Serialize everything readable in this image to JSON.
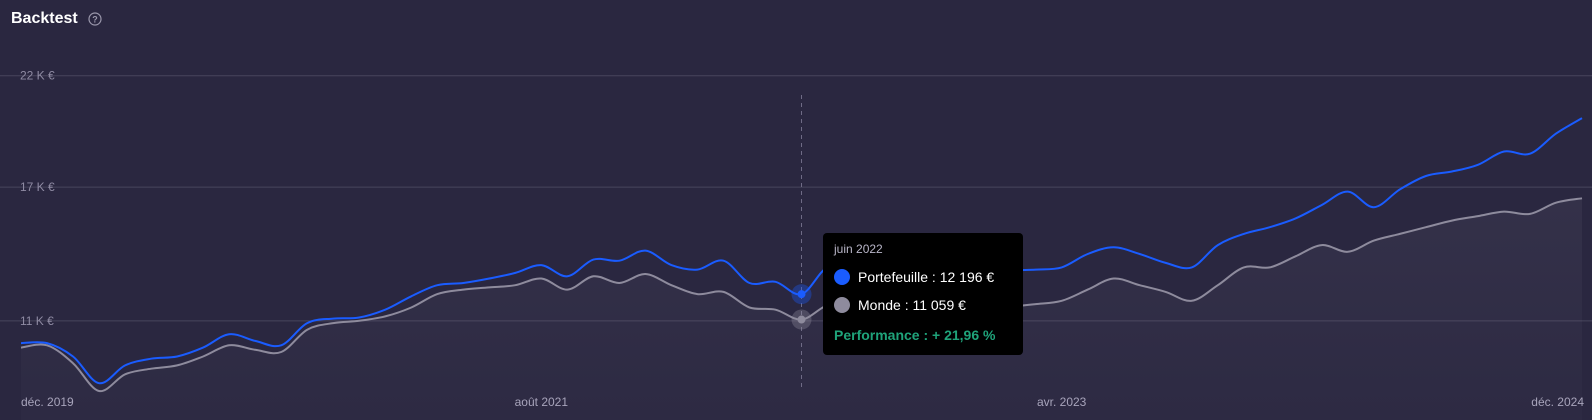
{
  "header": {
    "title": "Backtest",
    "help_icon": "question-circle-icon"
  },
  "colors": {
    "portfolio": "#1a5cff",
    "world": "#8e8b9d",
    "performance": "#1fa37a",
    "background": "#2a2740"
  },
  "tooltip": {
    "date": "juin 2022",
    "portfolio_text": "Portefeuille : 12 196 €",
    "world_text": "Monde : 11 059 €",
    "performance_text": "Performance : + 21,96 %"
  },
  "chart_data": {
    "type": "line",
    "title": "Backtest",
    "y_tick_labels": [
      "22 K €",
      "17 K €",
      "11 K €"
    ],
    "y_ticks": [
      22000,
      17000,
      11000
    ],
    "ylim": [
      6550,
      24500
    ],
    "x_tick_labels": [
      "déc. 2019",
      "août 2021",
      "avr. 2023",
      "déc. 2024"
    ],
    "x_tick_index": [
      0,
      20,
      40,
      60
    ],
    "grid": true,
    "highlight_index": 30,
    "series": [
      {
        "name": "Portefeuille",
        "values": [
          10000,
          10000,
          9400,
          8200,
          9000,
          9300,
          9400,
          9800,
          10400,
          10100,
          9900,
          10900,
          11100,
          11150,
          11500,
          12100,
          12600,
          12700,
          12900,
          13150,
          13500,
          13000,
          13750,
          13700,
          14150,
          13500,
          13300,
          13700,
          12700,
          12750,
          12196,
          13400,
          13200,
          12900,
          12800,
          12900,
          13000,
          13050,
          13250,
          13300,
          13400,
          14000,
          14300,
          14000,
          13600,
          13400,
          14400,
          14900,
          15200,
          15600,
          16200,
          16800,
          16100,
          16900,
          17500,
          17700,
          18000,
          18600,
          18500,
          19400,
          20100
        ]
      },
      {
        "name": "Monde",
        "values": [
          9800,
          9900,
          9100,
          7850,
          8600,
          8850,
          9000,
          9400,
          9900,
          9700,
          9600,
          10600,
          10900,
          11000,
          11200,
          11600,
          12200,
          12400,
          12500,
          12600,
          12900,
          12400,
          13000,
          12700,
          13100,
          12600,
          12200,
          12300,
          11600,
          11500,
          11059,
          11700,
          11800,
          11600,
          11400,
          11600,
          11800,
          11700,
          11650,
          11750,
          11900,
          12400,
          12900,
          12600,
          12300,
          11900,
          12600,
          13400,
          13400,
          13900,
          14400,
          14100,
          14600,
          14900,
          15200,
          15500,
          15700,
          15900,
          15800,
          16300,
          16500
        ]
      }
    ]
  }
}
